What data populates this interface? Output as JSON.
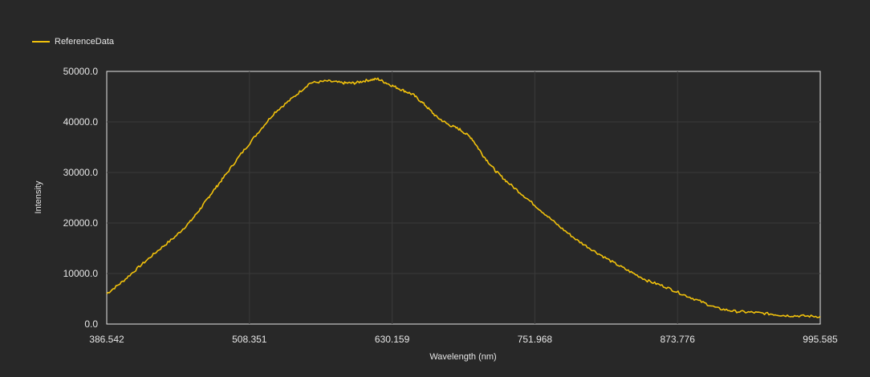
{
  "chart_data": {
    "type": "line",
    "title": "",
    "xlabel": "Wavelength (nm)",
    "ylabel": "Intensity",
    "xlim": [
      386.542,
      995.585
    ],
    "ylim": [
      0,
      50000
    ],
    "x_ticks": [
      "386.542",
      "508.351",
      "630.159",
      "751.968",
      "873.776",
      "995.585"
    ],
    "y_ticks": [
      "0.0",
      "10000.0",
      "20000.0",
      "30000.0",
      "40000.0",
      "50000.0"
    ],
    "grid": true,
    "legend": {
      "position": "top-left"
    },
    "series": [
      {
        "name": "ReferenceData",
        "color": "#f2c20c",
        "x": [
          386.542,
          400,
          415,
          430,
          445,
          458,
          468,
          476,
          486,
          500,
          515,
          530,
          545,
          560,
          575,
          588,
          598,
          608,
          618,
          628,
          638,
          648,
          658,
          668,
          678,
          688,
          698,
          708,
          718,
          728,
          743,
          758,
          773,
          788,
          803,
          818,
          833,
          848,
          863,
          878,
          893,
          908,
          923,
          938,
          953,
          965,
          980,
          995.585
        ],
        "y": [
          6000,
          8400,
          11500,
          14500,
          17300,
          20300,
          23300,
          25900,
          28900,
          33300,
          37700,
          41900,
          44700,
          47700,
          48100,
          47700,
          47700,
          48200,
          48500,
          47400,
          46400,
          45400,
          43400,
          41000,
          39500,
          38500,
          36800,
          33300,
          30400,
          28200,
          25300,
          22300,
          19300,
          16600,
          14400,
          12300,
          10400,
          8600,
          7400,
          5900,
          4500,
          3100,
          2500,
          2300,
          2000,
          1700,
          1600,
          1500
        ]
      }
    ]
  }
}
